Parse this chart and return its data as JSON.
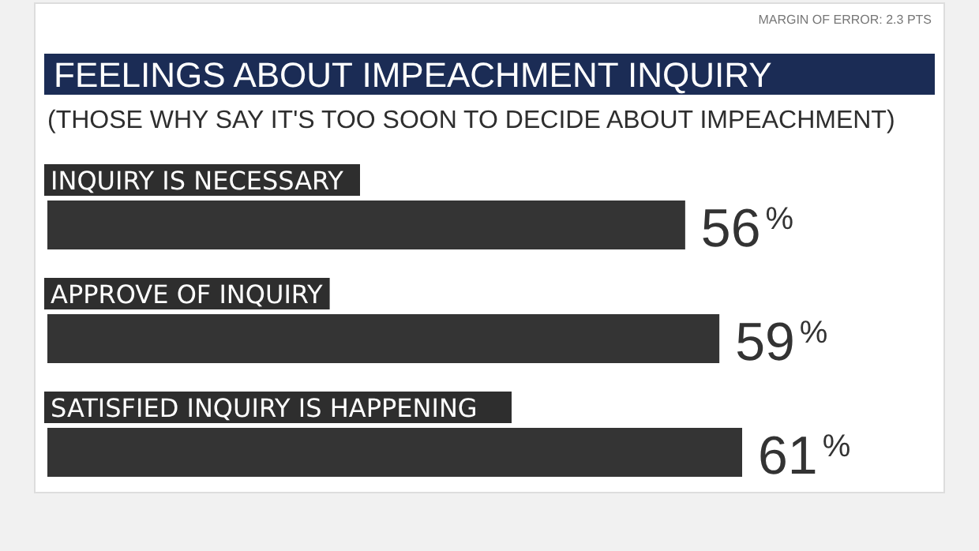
{
  "chart_data": {
    "type": "bar",
    "orientation": "horizontal",
    "title": "FEELINGS ABOUT IMPEACHMENT INQUIRY",
    "subtitle": "(THOSE WHY SAY IT'S TOO SOON TO DECIDE ABOUT IMPEACHMENT)",
    "annotations": [
      "MARGIN OF ERROR: 2.3 PTS"
    ],
    "categories": [
      "INQUIRY IS NECESSARY",
      "APPROVE OF INQUIRY",
      "SATISFIED INQUIRY IS HAPPENING"
    ],
    "values": [
      56,
      59,
      61
    ],
    "value_labels": [
      "56$^{%}$",
      "59$^{%}$",
      "61$^{%}$"
    ],
    "color": "#343434"
  }
}
